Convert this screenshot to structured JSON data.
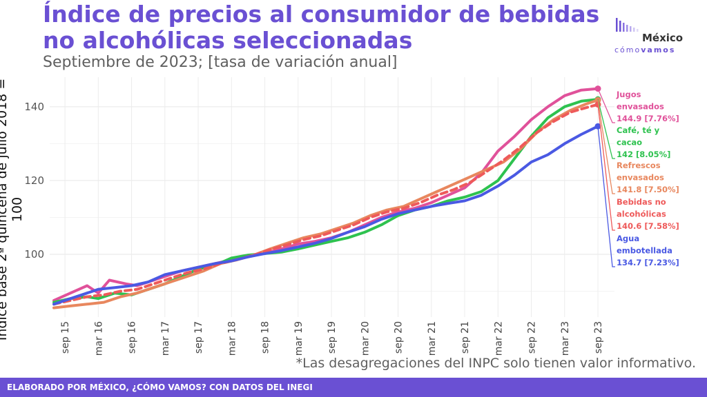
{
  "header": {
    "title_line1": "Índice de precios al consumidor de bebidas",
    "title_line2": "no alcohólicas seleccionadas",
    "subtitle": "Septiembre de 2023; [tasa de variación anual]"
  },
  "logo": {
    "word": "México",
    "tag_light": "cómo",
    "tag_bold": "vamos"
  },
  "footnote": "*Las desagregaciones del INPC solo tienen valor informativo.",
  "footer": "ELABORADO POR MÉXICO, ¿CÓMO VAMOS? CON DATOS DEL INEGI",
  "chart_data": {
    "type": "line",
    "ylabel": "Índice base 2ª quincena de julio 2018 = 100",
    "xlabel": "",
    "ylim": [
      83,
      148
    ],
    "yticks": [
      100,
      120,
      140
    ],
    "x_start": "2015-07",
    "x_end": "2023-09",
    "xticks": [
      {
        "label": "sep 15",
        "date": "2015-09"
      },
      {
        "label": "mar 16",
        "date": "2016-03"
      },
      {
        "label": "sep 16",
        "date": "2016-09"
      },
      {
        "label": "mar 17",
        "date": "2017-03"
      },
      {
        "label": "sep 17",
        "date": "2017-09"
      },
      {
        "label": "mar 18",
        "date": "2018-03"
      },
      {
        "label": "sep 18",
        "date": "2018-09"
      },
      {
        "label": "mar 19",
        "date": "2019-03"
      },
      {
        "label": "sep 19",
        "date": "2019-09"
      },
      {
        "label": "mar 20",
        "date": "2020-03"
      },
      {
        "label": "sep 20",
        "date": "2020-09"
      },
      {
        "label": "mar 21",
        "date": "2021-03"
      },
      {
        "label": "sep 21",
        "date": "2021-09"
      },
      {
        "label": "mar 22",
        "date": "2022-03"
      },
      {
        "label": "sep 22",
        "date": "2022-09"
      },
      {
        "label": "mar 23",
        "date": "2023-03"
      },
      {
        "label": "sep 23",
        "date": "2023-09"
      }
    ],
    "grid": true,
    "series": [
      {
        "name": "Jugos envasados",
        "end_label": [
          "Jugos",
          "envasados",
          "144.9 [7.76%]"
        ],
        "color": "#e0519a",
        "dashed": false,
        "points": [
          [
            "2015-07",
            87.5
          ],
          [
            "2015-10",
            89.5
          ],
          [
            "2016-01",
            91.5
          ],
          [
            "2016-03",
            89.5
          ],
          [
            "2016-05",
            93
          ],
          [
            "2016-08",
            92
          ],
          [
            "2016-10",
            91.5
          ],
          [
            "2017-01",
            93
          ],
          [
            "2017-03",
            94
          ],
          [
            "2017-06",
            95.5
          ],
          [
            "2017-09",
            96.5
          ],
          [
            "2017-12",
            97.5
          ],
          [
            "2018-03",
            98.5
          ],
          [
            "2018-06",
            99.3
          ],
          [
            "2018-09",
            100.3
          ],
          [
            "2018-12",
            101.5
          ],
          [
            "2019-03",
            102.8
          ],
          [
            "2019-06",
            103.5
          ],
          [
            "2019-09",
            104.5
          ],
          [
            "2019-12",
            106
          ],
          [
            "2020-03",
            108
          ],
          [
            "2020-06",
            110
          ],
          [
            "2020-09",
            111.5
          ],
          [
            "2020-12",
            112.5
          ],
          [
            "2021-03",
            114
          ],
          [
            "2021-06",
            116
          ],
          [
            "2021-09",
            118
          ],
          [
            "2021-12",
            122
          ],
          [
            "2022-03",
            128
          ],
          [
            "2022-06",
            132
          ],
          [
            "2022-09",
            136.5
          ],
          [
            "2022-12",
            140
          ],
          [
            "2023-03",
            143
          ],
          [
            "2023-06",
            144.5
          ],
          [
            "2023-09",
            144.9
          ]
        ]
      },
      {
        "name": "Café, té y cacao",
        "end_label": [
          "Café, té y",
          "cacao",
          "142 [8.05%]"
        ],
        "color": "#2ec24f",
        "dashed": false,
        "points": [
          [
            "2015-07",
            87
          ],
          [
            "2015-10",
            88
          ],
          [
            "2016-01",
            88.5
          ],
          [
            "2016-03",
            88
          ],
          [
            "2016-06",
            89.5
          ],
          [
            "2016-09",
            89
          ],
          [
            "2016-12",
            90.5
          ],
          [
            "2017-03",
            92
          ],
          [
            "2017-06",
            94
          ],
          [
            "2017-09",
            96
          ],
          [
            "2017-12",
            97
          ],
          [
            "2018-03",
            99
          ],
          [
            "2018-06",
            99.8
          ],
          [
            "2018-09",
            100.2
          ],
          [
            "2018-12",
            100.6
          ],
          [
            "2019-03",
            101.5
          ],
          [
            "2019-06",
            102.5
          ],
          [
            "2019-09",
            103.5
          ],
          [
            "2019-12",
            104.5
          ],
          [
            "2020-03",
            106
          ],
          [
            "2020-06",
            108
          ],
          [
            "2020-09",
            110.5
          ],
          [
            "2020-12",
            112
          ],
          [
            "2021-03",
            113
          ],
          [
            "2021-06",
            114.5
          ],
          [
            "2021-09",
            115.5
          ],
          [
            "2021-12",
            117
          ],
          [
            "2022-03",
            120
          ],
          [
            "2022-06",
            126
          ],
          [
            "2022-09",
            132
          ],
          [
            "2022-12",
            137
          ],
          [
            "2023-03",
            140
          ],
          [
            "2023-06",
            141.5
          ],
          [
            "2023-09",
            142
          ]
        ]
      },
      {
        "name": "Refrescos envasados",
        "end_label": [
          "Refrescos",
          "envasados",
          "141.8 [7.50%]"
        ],
        "color": "#e8875e",
        "dashed": false,
        "points": [
          [
            "2015-07",
            85.5
          ],
          [
            "2015-10",
            86
          ],
          [
            "2016-01",
            86.5
          ],
          [
            "2016-04",
            87
          ],
          [
            "2016-07",
            88.5
          ],
          [
            "2016-10",
            89.5
          ],
          [
            "2017-01",
            91
          ],
          [
            "2017-04",
            92.5
          ],
          [
            "2017-07",
            94
          ],
          [
            "2017-10",
            95.5
          ],
          [
            "2018-01",
            97.5
          ],
          [
            "2018-04",
            98.5
          ],
          [
            "2018-07",
            99.8
          ],
          [
            "2018-10",
            101.5
          ],
          [
            "2019-01",
            103
          ],
          [
            "2019-04",
            104.5
          ],
          [
            "2019-07",
            105.5
          ],
          [
            "2019-10",
            107
          ],
          [
            "2020-01",
            108.5
          ],
          [
            "2020-04",
            110.5
          ],
          [
            "2020-07",
            112
          ],
          [
            "2020-10",
            113
          ],
          [
            "2021-01",
            115
          ],
          [
            "2021-04",
            117
          ],
          [
            "2021-07",
            119
          ],
          [
            "2021-10",
            121
          ],
          [
            "2022-01",
            123
          ],
          [
            "2022-04",
            125
          ],
          [
            "2022-07",
            128.5
          ],
          [
            "2022-10",
            133
          ],
          [
            "2023-01",
            136.5
          ],
          [
            "2023-04",
            139
          ],
          [
            "2023-07",
            140.8
          ],
          [
            "2023-09",
            141.8
          ]
        ]
      },
      {
        "name": "Bebidas no alcohólicas",
        "end_label": [
          "Bebidas no",
          "alcohólicas",
          "140.6 [7.58%]"
        ],
        "color": "#ee5a5a",
        "dashed": true,
        "points": [
          [
            "2015-07",
            86.5
          ],
          [
            "2015-10",
            87.5
          ],
          [
            "2016-01",
            88.5
          ],
          [
            "2016-04",
            89
          ],
          [
            "2016-07",
            90
          ],
          [
            "2016-10",
            90.5
          ],
          [
            "2017-01",
            92
          ],
          [
            "2017-04",
            93.5
          ],
          [
            "2017-07",
            95
          ],
          [
            "2017-10",
            96
          ],
          [
            "2018-01",
            97.5
          ],
          [
            "2018-04",
            98.6
          ],
          [
            "2018-07",
            99.8
          ],
          [
            "2018-10",
            101.3
          ],
          [
            "2019-01",
            102.6
          ],
          [
            "2019-04",
            104
          ],
          [
            "2019-07",
            105
          ],
          [
            "2019-10",
            106.5
          ],
          [
            "2020-01",
            108
          ],
          [
            "2020-04",
            110
          ],
          [
            "2020-07",
            111.5
          ],
          [
            "2020-10",
            112.5
          ],
          [
            "2021-01",
            114
          ],
          [
            "2021-04",
            116
          ],
          [
            "2021-07",
            117.5
          ],
          [
            "2021-10",
            119.5
          ],
          [
            "2022-01",
            122.5
          ],
          [
            "2022-04",
            125.5
          ],
          [
            "2022-07",
            129
          ],
          [
            "2022-10",
            133
          ],
          [
            "2023-01",
            136
          ],
          [
            "2023-04",
            138.5
          ],
          [
            "2023-07",
            139.8
          ],
          [
            "2023-09",
            140.6
          ]
        ]
      },
      {
        "name": "Agua embotellada",
        "end_label": [
          "Agua",
          "embotellada",
          "134.7 [7.23%]"
        ],
        "color": "#4a59e3",
        "dashed": false,
        "points": [
          [
            "2015-07",
            86.5
          ],
          [
            "2015-10",
            88
          ],
          [
            "2016-01",
            89.5
          ],
          [
            "2016-03",
            90.5
          ],
          [
            "2016-06",
            91
          ],
          [
            "2016-09",
            91.5
          ],
          [
            "2016-12",
            92.5
          ],
          [
            "2017-03",
            94.5
          ],
          [
            "2017-06",
            95.5
          ],
          [
            "2017-09",
            96.5
          ],
          [
            "2017-12",
            97.5
          ],
          [
            "2018-03",
            98.2
          ],
          [
            "2018-06",
            99.3
          ],
          [
            "2018-09",
            100.2
          ],
          [
            "2018-12",
            101
          ],
          [
            "2019-03",
            102
          ],
          [
            "2019-06",
            103
          ],
          [
            "2019-09",
            104.3
          ],
          [
            "2019-12",
            106
          ],
          [
            "2020-03",
            107.5
          ],
          [
            "2020-06",
            109.5
          ],
          [
            "2020-09",
            111
          ],
          [
            "2020-12",
            112
          ],
          [
            "2021-03",
            113
          ],
          [
            "2021-06",
            113.8
          ],
          [
            "2021-09",
            114.5
          ],
          [
            "2021-12",
            116
          ],
          [
            "2022-03",
            118.5
          ],
          [
            "2022-06",
            121.5
          ],
          [
            "2022-09",
            125
          ],
          [
            "2022-12",
            127
          ],
          [
            "2023-03",
            130
          ],
          [
            "2023-06",
            132.5
          ],
          [
            "2023-09",
            134.7
          ]
        ]
      }
    ]
  }
}
